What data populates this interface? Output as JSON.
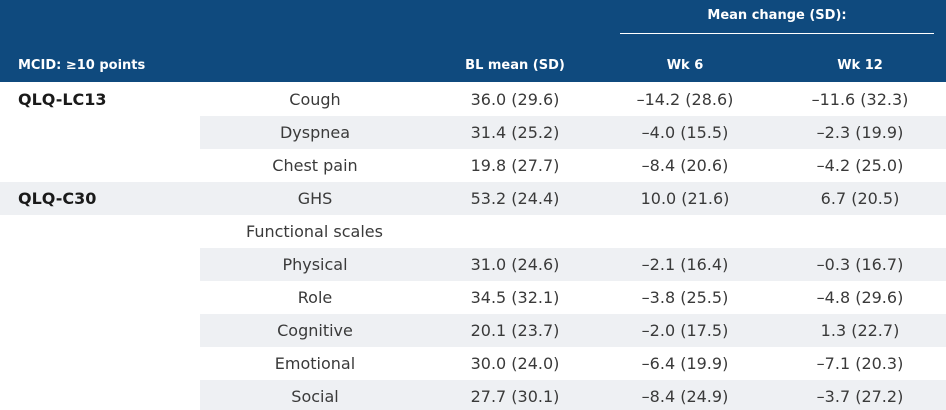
{
  "header": {
    "group_label": "Mean change (SD):",
    "col_mcid": "MCID: ≥10 points",
    "col_bl": "BL mean (SD)",
    "col_wk6": "Wk 6",
    "col_wk12": "Wk 12"
  },
  "rows": [
    {
      "group": "QLQ-LC13",
      "label": "Cough",
      "bl": "36.0 (29.6)",
      "wk6": "–14.2 (28.6)",
      "wk12": "–11.6 (32.3)"
    },
    {
      "group": "",
      "label": "Dyspnea",
      "bl": "31.4 (25.2)",
      "wk6": "–4.0 (15.5)",
      "wk12": "–2.3 (19.9)"
    },
    {
      "group": "",
      "label": "Chest pain",
      "bl": "19.8 (27.7)",
      "wk6": "–8.4 (20.6)",
      "wk12": "–4.2 (25.0)"
    },
    {
      "group": "QLQ-C30",
      "label": "GHS",
      "bl": "53.2 (24.4)",
      "wk6": "10.0 (21.6)",
      "wk12": "6.7 (20.5)"
    },
    {
      "group": "",
      "label": "Functional scales",
      "bl": "",
      "wk6": "",
      "wk12": ""
    },
    {
      "group": "",
      "label": "Physical",
      "bl": "31.0 (24.6)",
      "wk6": "–2.1 (16.4)",
      "wk12": "–0.3 (16.7)"
    },
    {
      "group": "",
      "label": "Role",
      "bl": "34.5 (32.1)",
      "wk6": "–3.8 (25.5)",
      "wk12": "–4.8 (29.6)"
    },
    {
      "group": "",
      "label": "Cognitive",
      "bl": "20.1 (23.7)",
      "wk6": "–2.0 (17.5)",
      "wk12": "1.3 (22.7)"
    },
    {
      "group": "",
      "label": "Emotional",
      "bl": "30.0 (24.0)",
      "wk6": "–6.4 (19.9)",
      "wk12": "–7.1 (20.3)"
    },
    {
      "group": "",
      "label": "Social",
      "bl": "27.7 (30.1)",
      "wk6": "–8.4 (24.9)",
      "wk12": "–3.7 (27.2)"
    }
  ]
}
